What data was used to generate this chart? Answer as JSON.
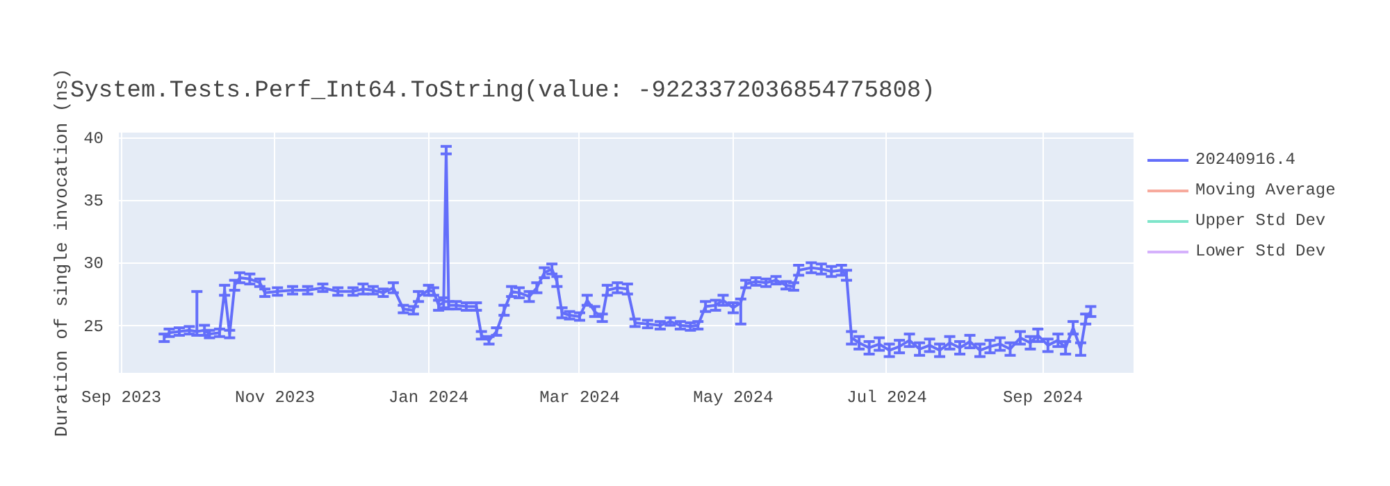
{
  "chart_data": {
    "type": "line",
    "title": "System.Tests.Perf_Int64.ToString(value: -9223372036854775808)",
    "ylabel": "Duration of single invocation (ns)",
    "x": [
      "2023-09-18",
      "2023-09-20",
      "2023-09-24",
      "2023-09-28",
      "2023-10-01",
      "2023-10-04",
      "2023-10-06",
      "2023-10-10",
      "2023-10-12",
      "2023-10-14",
      "2023-10-16",
      "2023-10-18",
      "2023-10-22",
      "2023-10-26",
      "2023-10-28",
      "2023-11-02",
      "2023-11-08",
      "2023-11-14",
      "2023-11-20",
      "2023-11-26",
      "2023-12-02",
      "2023-12-06",
      "2023-12-10",
      "2023-12-14",
      "2023-12-18",
      "2023-12-22",
      "2023-12-26",
      "2023-12-28",
      "2024-01-01",
      "2024-01-03",
      "2024-01-05",
      "2024-01-07",
      "2024-01-08",
      "2024-01-09",
      "2024-01-12",
      "2024-01-16",
      "2024-01-20",
      "2024-01-22",
      "2024-01-25",
      "2024-01-28",
      "2024-01-31",
      "2024-02-03",
      "2024-02-06",
      "2024-02-10",
      "2024-02-13",
      "2024-02-16",
      "2024-02-19",
      "2024-02-21",
      "2024-02-23",
      "2024-02-26",
      "2024-03-01",
      "2024-03-04",
      "2024-03-07",
      "2024-03-10",
      "2024-03-12",
      "2024-03-16",
      "2024-03-20",
      "2024-03-23",
      "2024-03-28",
      "2024-04-02",
      "2024-04-06",
      "2024-04-10",
      "2024-04-14",
      "2024-04-17",
      "2024-04-20",
      "2024-04-24",
      "2024-04-27",
      "2024-05-01",
      "2024-05-04",
      "2024-05-06",
      "2024-05-10",
      "2024-05-14",
      "2024-05-18",
      "2024-05-22",
      "2024-05-25",
      "2024-05-27",
      "2024-06-01",
      "2024-06-05",
      "2024-06-09",
      "2024-06-13",
      "2024-06-15",
      "2024-06-17",
      "2024-06-20",
      "2024-06-24",
      "2024-06-28",
      "2024-07-02",
      "2024-07-06",
      "2024-07-10",
      "2024-07-14",
      "2024-07-18",
      "2024-07-22",
      "2024-07-26",
      "2024-07-30",
      "2024-08-03",
      "2024-08-07",
      "2024-08-11",
      "2024-08-15",
      "2024-08-19",
      "2024-08-23",
      "2024-08-27",
      "2024-08-30",
      "2024-09-03",
      "2024-09-07",
      "2024-09-10",
      "2024-09-13",
      "2024-09-16",
      "2024-09-18",
      "2024-09-20"
    ],
    "series": [
      {
        "name": "20240916.4",
        "color": "#636efa",
        "values": [
          24.0,
          24.4,
          24.5,
          24.6,
          24.5,
          24.6,
          24.3,
          24.4,
          27.8,
          24.3,
          28.2,
          28.8,
          28.7,
          28.4,
          27.6,
          27.7,
          27.8,
          27.8,
          28.0,
          27.7,
          27.7,
          27.9,
          27.8,
          27.6,
          28.0,
          26.3,
          26.2,
          27.3,
          27.8,
          27.7,
          26.6,
          26.8,
          39.0,
          26.6,
          26.6,
          26.5,
          26.5,
          24.2,
          23.8,
          24.5,
          26.2,
          27.7,
          27.6,
          27.3,
          28.0,
          29.2,
          29.5,
          28.5,
          26.0,
          25.8,
          25.7,
          27.0,
          26.1,
          25.6,
          27.8,
          28.0,
          27.9,
          25.2,
          25.1,
          25.0,
          25.3,
          25.0,
          24.9,
          25.0,
          26.5,
          26.6,
          27.0,
          26.4,
          26.8,
          28.3,
          28.5,
          28.4,
          28.6,
          28.2,
          28.1,
          29.4,
          29.6,
          29.5,
          29.3,
          29.4,
          29.0,
          24.0,
          23.6,
          23.2,
          23.5,
          23.0,
          23.3,
          23.8,
          23.1,
          23.4,
          23.0,
          23.6,
          23.2,
          23.7,
          23.0,
          23.3,
          23.5,
          23.1,
          24.0,
          23.6,
          24.2,
          23.4,
          23.8,
          23.2,
          24.8,
          23.1,
          25.5,
          26.1
        ],
        "errors": [
          0.3,
          0.3,
          0.3,
          0.3,
          [
            24.2,
            27.7
          ],
          0.4,
          0.3,
          0.3,
          0.4,
          0.3,
          0.4,
          0.4,
          0.4,
          0.3,
          0.3,
          0.3,
          0.3,
          0.3,
          0.3,
          0.3,
          0.3,
          0.4,
          0.3,
          0.3,
          0.4,
          0.3,
          0.3,
          0.4,
          0.4,
          0.3,
          0.4,
          0.4,
          0.3,
          0.3,
          0.3,
          0.3,
          0.3,
          0.3,
          0.3,
          0.3,
          0.4,
          0.4,
          0.4,
          0.4,
          0.4,
          0.4,
          0.4,
          0.4,
          0.4,
          0.3,
          0.3,
          0.4,
          0.4,
          0.3,
          0.4,
          0.4,
          0.4,
          0.3,
          0.3,
          0.3,
          0.3,
          0.3,
          0.3,
          0.3,
          0.4,
          0.4,
          0.4,
          0.4,
          [
            25.1,
            27.1
          ],
          0.3,
          0.3,
          0.3,
          0.3,
          0.3,
          0.3,
          0.4,
          0.4,
          0.4,
          0.4,
          0.4,
          0.4,
          0.5,
          0.5,
          0.5,
          0.5,
          0.5,
          0.5,
          0.5,
          0.5,
          0.5,
          0.5,
          0.5,
          0.5,
          0.5,
          0.5,
          0.5,
          0.5,
          0.5,
          0.5,
          0.5,
          0.5,
          0.5,
          0.5,
          0.5,
          0.5,
          0.5,
          0.4,
          0.4
        ]
      },
      {
        "name": "Moving Average",
        "color": "#ef553b",
        "values": [
          null,
          null,
          null,
          null,
          null,
          null,
          null,
          null,
          null,
          null,
          null,
          null,
          null,
          null,
          null,
          null,
          null,
          null,
          null,
          null,
          null,
          null,
          null,
          null,
          null,
          null,
          null,
          null,
          null,
          null,
          null,
          null,
          null,
          null,
          null,
          null,
          null,
          null,
          null,
          null,
          null,
          null,
          null,
          null,
          null,
          null,
          null,
          null,
          null,
          null,
          null,
          null,
          null,
          null,
          null,
          null,
          null,
          null,
          null,
          null,
          null,
          null,
          null,
          null,
          null,
          null,
          null,
          null,
          null,
          null,
          null,
          null,
          null,
          null,
          null,
          null,
          null,
          null,
          null,
          null,
          null,
          null,
          null,
          null,
          null,
          null,
          null,
          null,
          null,
          null,
          null,
          null,
          null,
          null,
          null,
          null,
          null,
          null,
          null,
          null,
          null,
          null,
          null,
          null,
          null,
          null,
          null,
          null
        ]
      },
      {
        "name": "Upper Std Dev",
        "color": "#00cc96",
        "values": [
          null,
          null,
          null,
          null,
          null,
          null,
          null,
          null,
          null,
          null,
          null,
          null,
          null,
          null,
          null,
          null,
          null,
          null,
          null,
          null,
          null,
          null,
          null,
          null,
          null,
          null,
          null,
          null,
          null,
          null,
          null,
          null,
          null,
          null,
          null,
          null,
          null,
          null,
          null,
          null,
          null,
          null,
          null,
          null,
          null,
          null,
          null,
          null,
          null,
          null,
          null,
          null,
          null,
          null,
          null,
          null,
          null,
          null,
          null,
          null,
          null,
          null,
          null,
          null,
          null,
          null,
          null,
          null,
          null,
          null,
          null,
          null,
          null,
          null,
          null,
          null,
          null,
          null,
          null,
          null,
          null,
          null,
          null,
          null,
          null,
          null,
          null,
          null,
          null,
          null,
          null,
          null,
          null,
          null,
          null,
          null,
          null,
          null,
          null,
          null,
          null,
          null,
          null,
          null,
          null,
          null,
          null,
          null
        ]
      },
      {
        "name": "Lower Std Dev",
        "color": "#ab63fa",
        "values": [
          null,
          null,
          null,
          null,
          null,
          null,
          null,
          null,
          null,
          null,
          null,
          null,
          null,
          null,
          null,
          null,
          null,
          null,
          null,
          null,
          null,
          null,
          null,
          null,
          null,
          null,
          null,
          null,
          null,
          null,
          null,
          null,
          null,
          null,
          null,
          null,
          null,
          null,
          null,
          null,
          null,
          null,
          null,
          null,
          null,
          null,
          null,
          null,
          null,
          null,
          null,
          null,
          null,
          null,
          null,
          null,
          null,
          null,
          null,
          null,
          null,
          null,
          null,
          null,
          null,
          null,
          null,
          null,
          null,
          null,
          null,
          null,
          null,
          null,
          null,
          null,
          null,
          null,
          null,
          null,
          null,
          null,
          null,
          null,
          null,
          null,
          null,
          null,
          null,
          null,
          null,
          null,
          null,
          null,
          null,
          null,
          null,
          null,
          null,
          null,
          null,
          null,
          null,
          null,
          null,
          null,
          null,
          null
        ]
      }
    ],
    "xlim": [
      "2023-08-31",
      "2024-10-07"
    ],
    "xticks": [
      {
        "value": "2023-09-01",
        "label": "Sep 2023"
      },
      {
        "value": "2023-11-01",
        "label": "Nov 2023"
      },
      {
        "value": "2024-01-01",
        "label": "Jan 2024"
      },
      {
        "value": "2024-03-01",
        "label": "Mar 2024"
      },
      {
        "value": "2024-05-01",
        "label": "May 2024"
      },
      {
        "value": "2024-07-01",
        "label": "Jul 2024"
      },
      {
        "value": "2024-09-01",
        "label": "Sep 2024"
      }
    ],
    "ylim": [
      21.2,
      40.4
    ],
    "yticks": [
      25,
      30,
      35,
      40
    ],
    "grid": true,
    "legend": "right",
    "marker": "none",
    "line_style": "solid"
  }
}
